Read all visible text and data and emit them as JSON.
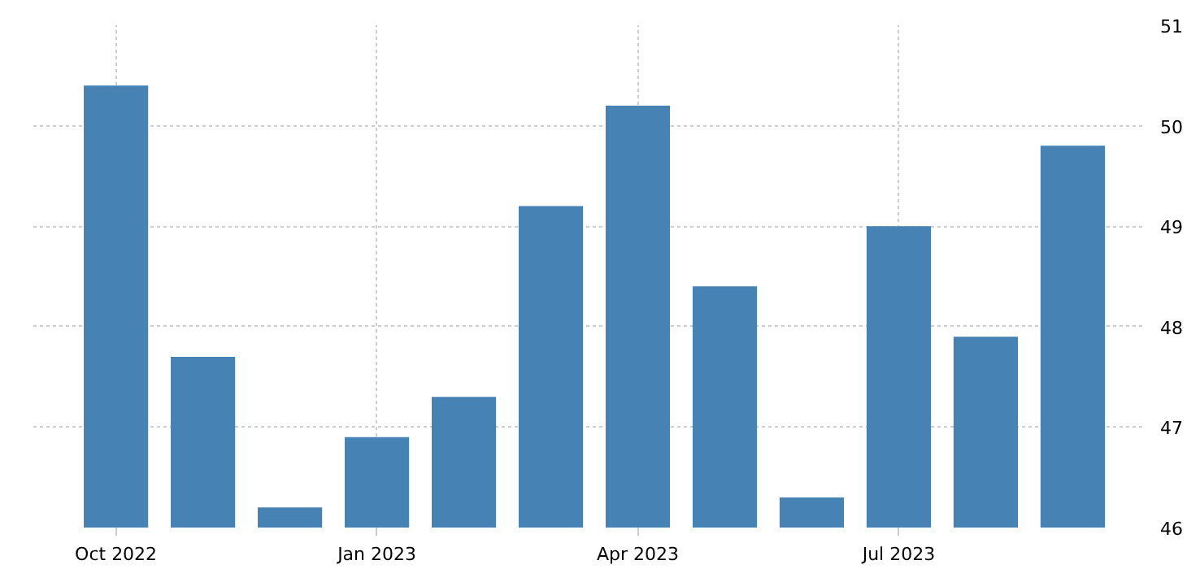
{
  "chart_data": {
    "type": "bar",
    "categories": [
      "Oct 2022",
      null,
      null,
      "Jan 2023",
      null,
      null,
      "Apr 2023",
      null,
      null,
      "Jul 2023",
      null,
      null
    ],
    "values": [
      50.4,
      47.7,
      46.2,
      46.9,
      47.3,
      49.2,
      50.2,
      48.4,
      46.3,
      49.0,
      47.9,
      49.8
    ],
    "color": "#4682b4",
    "ylim": [
      46,
      51
    ],
    "yticks": [
      46,
      47,
      48,
      49,
      50,
      51
    ],
    "grid": true
  }
}
